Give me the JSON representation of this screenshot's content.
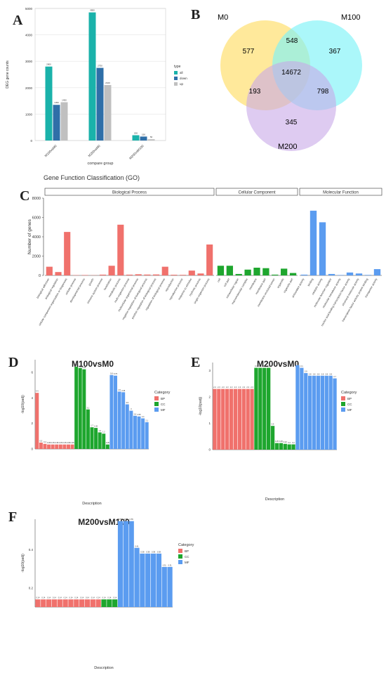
{
  "panel_letters": {
    "A": "A",
    "B": "B",
    "C": "C",
    "D": "D",
    "E": "E",
    "F": "F"
  },
  "colors": {
    "teal": "#1ab2aa",
    "steel": "#2f6fa8",
    "lightgray": "#c0c0c0",
    "bp": "#f0716c",
    "cc": "#1ea62e",
    "mf": "#5b9cf0",
    "venn_m0": "#ffe27a",
    "venn_m100": "#7ef2f8",
    "venn_m200": "#c8a9e8"
  },
  "chart_data": [
    {
      "id": "A",
      "type": "bar",
      "categories": [
        "M100vsM0",
        "M200vsM0",
        "M200vsM100"
      ],
      "series": [
        {
          "name": "all",
          "values": [
            2800,
            4850,
            200
          ]
        },
        {
          "name": "down",
          "values": [
            1350,
            2750,
            150
          ]
        },
        {
          "name": "up",
          "values": [
            1450,
            2100,
            50
          ]
        }
      ],
      "ylabel": "DEG gene counts",
      "xlabel": "compare group",
      "legend_title": "type",
      "ylim": [
        0,
        5000
      ],
      "yticks": [
        "0",
        "1000",
        "2000",
        "3000",
        "4000",
        "5000"
      ],
      "grid": true,
      "legend": "right"
    },
    {
      "id": "B",
      "type": "venn",
      "sets": [
        "M0",
        "M100",
        "M200"
      ],
      "regions": {
        "M0": "577",
        "M100": "367",
        "M200": "345",
        "M0_M100": "548",
        "M0_M200": "193",
        "M100_M200": "798",
        "all": "14672"
      }
    },
    {
      "id": "C",
      "type": "bar",
      "title": "Gene Function Classification (GO)",
      "ylabel": "Number of genes",
      "ylim": [
        0,
        8000
      ],
      "yticks": [
        "0",
        "2000",
        "4000",
        "6000",
        "8000"
      ],
      "facets": [
        {
          "name": "Biological Process",
          "labels": [
            "biological adhesion",
            "biological regulation",
            "cellular component organization or biogenesis",
            "cellular process",
            "developmental process",
            "growth",
            "immune system process",
            "localization",
            "metabolic process",
            "multi-organism process",
            "multicellular organismal process",
            "negative regulation of biological process",
            "positive regulation of biological process",
            "regulation of biological process",
            "reproduction",
            "reproductive process",
            "response to stimulus",
            "rhythmic process",
            "single-organism process"
          ],
          "values": [
            900,
            350,
            4500,
            30,
            40,
            20,
            80,
            1000,
            5250,
            80,
            120,
            90,
            100,
            900,
            70,
            60,
            500,
            200,
            3200
          ]
        },
        {
          "name": "Cellular Component",
          "labels": [
            "cell",
            "cell part",
            "extracellular region",
            "macromolecular complex",
            "membrane",
            "membrane part",
            "membrane-enclosed lumen",
            "organelle",
            "organelle part"
          ],
          "values": [
            1000,
            1000,
            150,
            600,
            800,
            750,
            80,
            700,
            250
          ]
        },
        {
          "name": "Molecular Function",
          "labels": [
            "antioxidant activity",
            "binding",
            "catalytic activity",
            "molecular function regulator",
            "molecular transducer activity",
            "nucleic acid binding transcription factor activity",
            "structural molecule activity",
            "transcription factor activity, protein binding",
            "transporter activity"
          ],
          "values": [
            80,
            6700,
            5500,
            150,
            40,
            300,
            200,
            50,
            650
          ]
        }
      ]
    },
    {
      "id": "D",
      "type": "bar",
      "title": "M100vsM0",
      "ylabel": "-log10(padj)",
      "xlabel": "Description",
      "ylim": [
        0,
        7
      ],
      "yticks": [
        "0",
        "2",
        "4",
        "6"
      ],
      "legend_title": "Category",
      "legend": "right",
      "categories": [
        "BP",
        "CC",
        "MF"
      ],
      "groups": [
        {
          "category": "BP",
          "values": [
            4.4,
            0.5,
            0.4,
            0.35,
            0.35,
            0.35,
            0.35,
            0.35,
            0.35,
            0.35
          ]
        },
        {
          "category": "CC",
          "values": [
            6.45,
            6.35,
            6.25,
            3.1,
            1.7,
            1.65,
            1.3,
            1.2,
            0.35
          ]
        },
        {
          "category": "MF",
          "values": [
            5.8,
            5.75,
            4.5,
            4.45,
            3.5,
            3.0,
            2.6,
            2.55,
            2.4,
            2.1
          ]
        }
      ]
    },
    {
      "id": "E",
      "type": "bar",
      "title": "M200vsM0",
      "ylabel": "-log10(padj)",
      "xlabel": "Description",
      "ylim": [
        0,
        3.3
      ],
      "yticks": [
        "0",
        "1",
        "2",
        "3"
      ],
      "legend_title": "Category",
      "legend": "right",
      "categories": [
        "BP",
        "CC",
        "MF"
      ],
      "groups": [
        {
          "category": "BP",
          "values": [
            2.3,
            2.3,
            2.3,
            2.3,
            2.3,
            2.3,
            2.3,
            2.3,
            2.3,
            2.3
          ]
        },
        {
          "category": "CC",
          "values": [
            3.1,
            3.1,
            3.1,
            3.1,
            0.9,
            0.25,
            0.25,
            0.22,
            0.2,
            0.2
          ]
        },
        {
          "category": "MF",
          "values": [
            3.2,
            3.1,
            2.9,
            2.8,
            2.8,
            2.8,
            2.8,
            2.8,
            2.8,
            2.7
          ]
        }
      ]
    },
    {
      "id": "F",
      "type": "bar",
      "title": "M200vsM100",
      "ylabel": "-log10(padj)",
      "xlabel": "Description",
      "ylim": [
        0,
        0.56
      ],
      "yticks": [
        "0.2",
        "0.4"
      ],
      "legend_title": "Category",
      "legend": "right",
      "categories": [
        "BP",
        "CC",
        "MF"
      ],
      "groups": [
        {
          "category": "BP",
          "values": [
            0.14,
            0.14,
            0.14,
            0.14,
            0.14,
            0.14,
            0.14,
            0.14,
            0.14,
            0.14,
            0.14,
            0.14
          ]
        },
        {
          "category": "CC",
          "values": [
            0.14,
            0.14,
            0.14
          ]
        },
        {
          "category": "MF",
          "values": [
            0.55,
            0.55,
            0.55,
            0.41,
            0.38,
            0.38,
            0.38,
            0.38,
            0.31,
            0.31
          ]
        }
      ]
    }
  ]
}
